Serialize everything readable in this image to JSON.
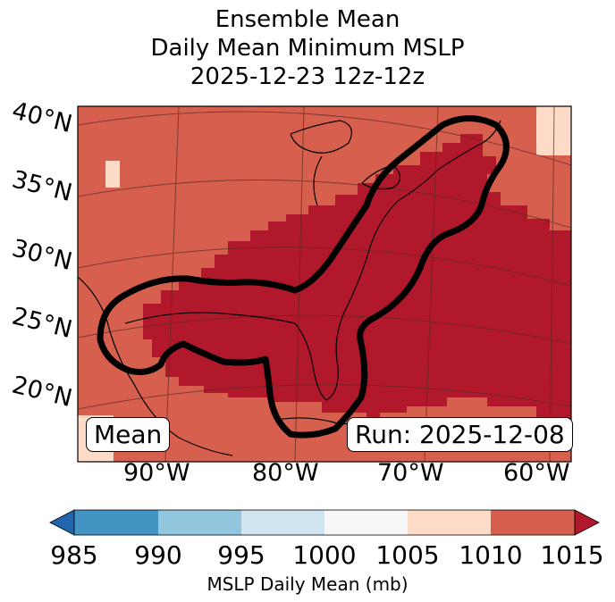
{
  "title": {
    "line1": "Ensemble Mean",
    "line2": "Daily Mean Minimum MSLP",
    "line3": "2025-12-23 12z-12z"
  },
  "map": {
    "lat_labels": [
      "40°N",
      "35°N",
      "30°N",
      "25°N",
      "20°N"
    ],
    "lon_labels": [
      "90°W",
      "80°W",
      "70°W",
      "60°W"
    ],
    "mean_label": "Mean",
    "run_label": "Run: 2025-12-08",
    "colors": {
      "deep_red": "#b2182b",
      "red": "#d6604d",
      "peach": "#fddbc7",
      "contour": "#000000"
    }
  },
  "colorbar": {
    "ticks": [
      "985",
      "990",
      "995",
      "1000",
      "1005",
      "1010",
      "1015"
    ],
    "label": "MSLP Daily Mean (mb)",
    "colors": [
      "#2166ac",
      "#4393c3",
      "#92c5de",
      "#d1e5f0",
      "#f7f7f7",
      "#fddbc7",
      "#d6604d",
      "#b2182b"
    ]
  }
}
